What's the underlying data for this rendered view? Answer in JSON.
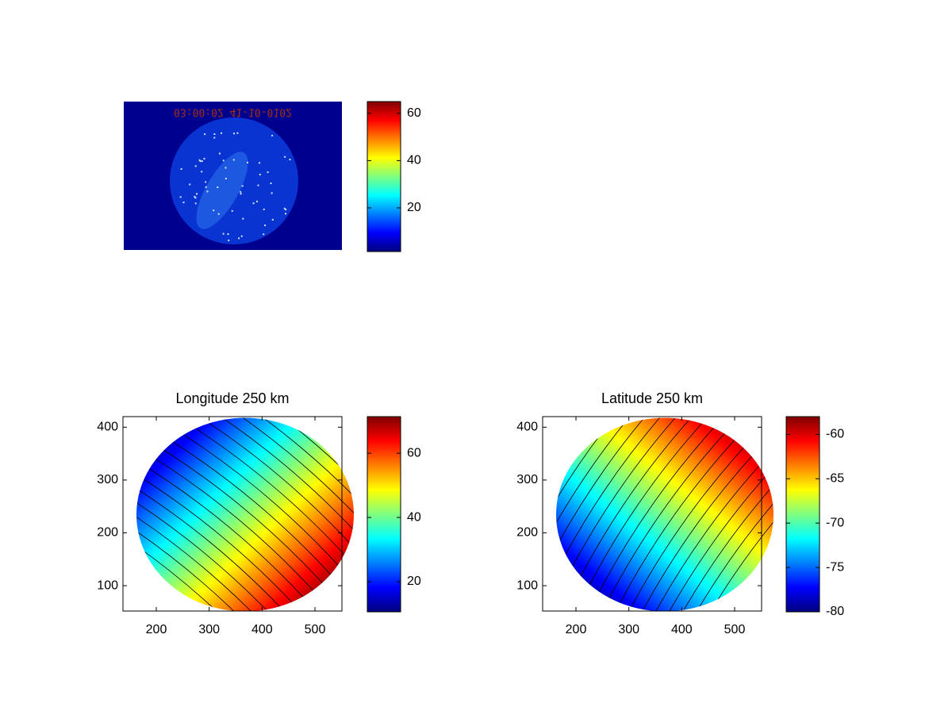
{
  "chart_data": [
    {
      "type": "image",
      "annotation": "03:00:02 41-10-0102",
      "colorbar": {
        "clim": [
          1.5,
          65
        ],
        "ticks": [
          20,
          40,
          60
        ]
      }
    },
    {
      "type": "contour",
      "title": "Longitude 250 km",
      "xlim": [
        137,
        551
      ],
      "xticks": [
        200,
        300,
        400,
        500
      ],
      "ylim": [
        52,
        420
      ],
      "yticks": [
        100,
        200,
        300,
        400
      ],
      "colorbar": {
        "clim": [
          10.6,
          71.4
        ],
        "ticks": [
          20,
          40,
          60
        ]
      }
    },
    {
      "type": "contour",
      "title": "Latitude 250 km",
      "xlim": [
        137,
        551
      ],
      "xticks": [
        200,
        300,
        400,
        500
      ],
      "ylim": [
        52,
        420
      ],
      "yticks": [
        100,
        200,
        300,
        400
      ],
      "colorbar": {
        "clim": [
          -80,
          -58
        ],
        "ticks": [
          -80,
          -75,
          -70,
          -65,
          -60
        ]
      }
    }
  ]
}
